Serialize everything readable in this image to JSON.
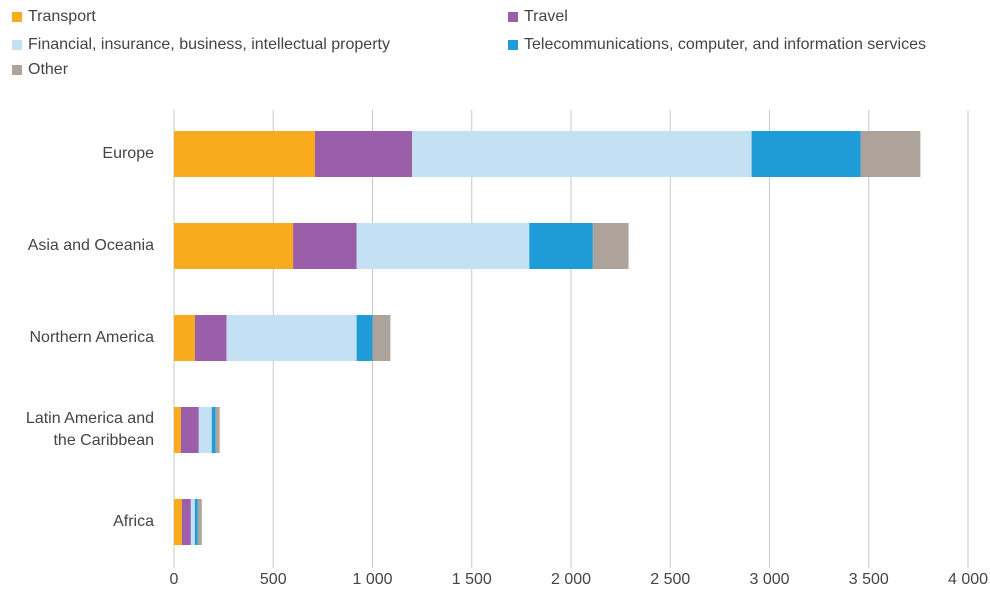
{
  "chart_data": {
    "type": "stacked-barh",
    "categories": [
      "Europe",
      "Asia and Oceania",
      "Northern America",
      "Latin America and the Caribbean",
      "Africa"
    ],
    "series": [
      {
        "name": "Transport",
        "color": "#f9ab1e",
        "values": [
          710,
          600,
          105,
          35,
          40
        ]
      },
      {
        "name": "Travel",
        "color": "#9b5ea8",
        "values": [
          490,
          320,
          160,
          90,
          45
        ]
      },
      {
        "name": "Financial, insurance, business, intellectual property",
        "color": "#c4e1f3",
        "values": [
          1710,
          870,
          655,
          65,
          20
        ]
      },
      {
        "name": "Telecommunications, computer, and information services",
        "color": "#1f9cd8",
        "values": [
          550,
          320,
          80,
          20,
          15
        ]
      },
      {
        "name": "Other",
        "color": "#aea39b",
        "values": [
          300,
          180,
          90,
          20,
          20
        ]
      }
    ],
    "xlim": [
      0,
      4000
    ],
    "xticks": [
      0,
      500,
      {
        "value": 1000,
        "label": "1 000"
      },
      {
        "value": 1500,
        "label": "1 500"
      },
      {
        "value": 2000,
        "label": "2 000"
      },
      {
        "value": 2500,
        "label": "2 500"
      },
      {
        "value": 3000,
        "label": "3 000"
      },
      {
        "value": 3500,
        "label": "3 500"
      },
      {
        "value": 4000,
        "label": "4 000"
      }
    ],
    "grid": true,
    "legend": "top"
  }
}
